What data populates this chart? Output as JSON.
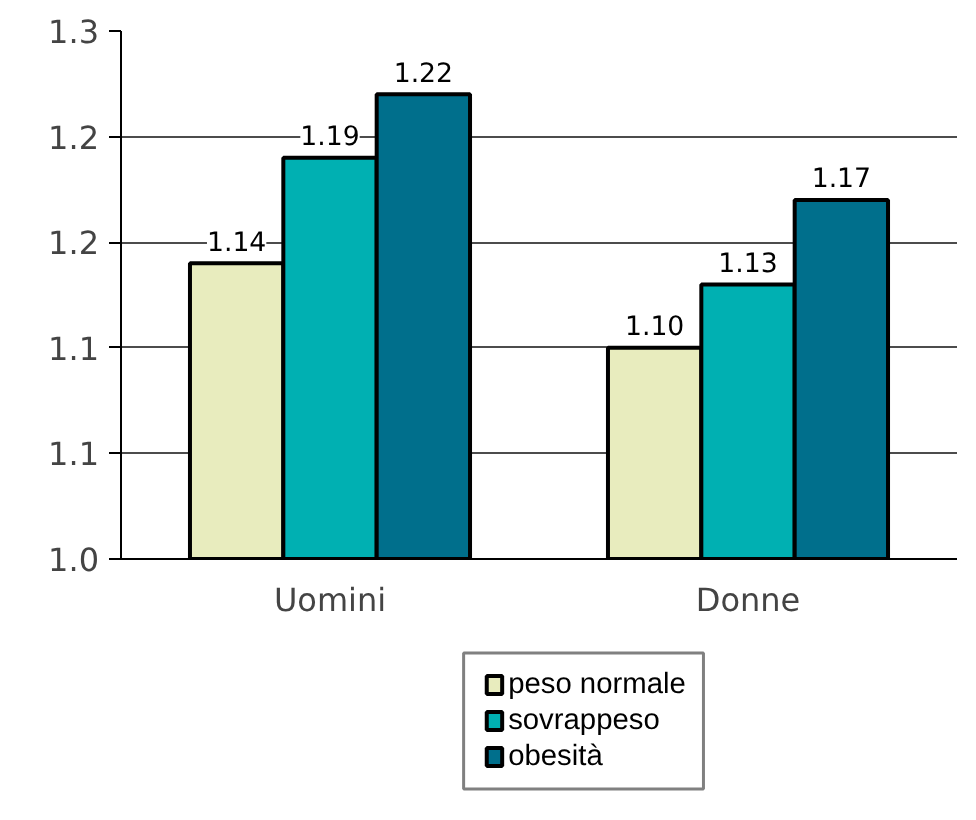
{
  "chart_data": {
    "type": "bar",
    "categories": [
      "Uomini",
      "Donne"
    ],
    "series": [
      {
        "name": "peso normale",
        "color": "#e8ecbe",
        "values": [
          1.14,
          1.1
        ],
        "value_labels": [
          "1.14",
          "1.10"
        ]
      },
      {
        "name": "sovrappeso",
        "color": "#00b0b2",
        "values": [
          1.19,
          1.13
        ],
        "value_labels": [
          "1.19",
          "1.13"
        ]
      },
      {
        "name": "obesità",
        "color": "#006f8c",
        "values": [
          1.22,
          1.17
        ],
        "value_labels": [
          "1.22",
          "1.17"
        ]
      }
    ],
    "ylim": [
      1.0,
      1.25
    ],
    "yticks": [
      {
        "value": 1.0,
        "label": "1.0"
      },
      {
        "value": 1.05,
        "label": "1.1"
      },
      {
        "value": 1.1,
        "label": "1.1"
      },
      {
        "value": 1.15,
        "label": "1.2"
      },
      {
        "value": 1.2,
        "label": "1.2"
      },
      {
        "value": 1.25,
        "label": "1.3"
      }
    ],
    "grid": "y",
    "legend": "bottom"
  }
}
